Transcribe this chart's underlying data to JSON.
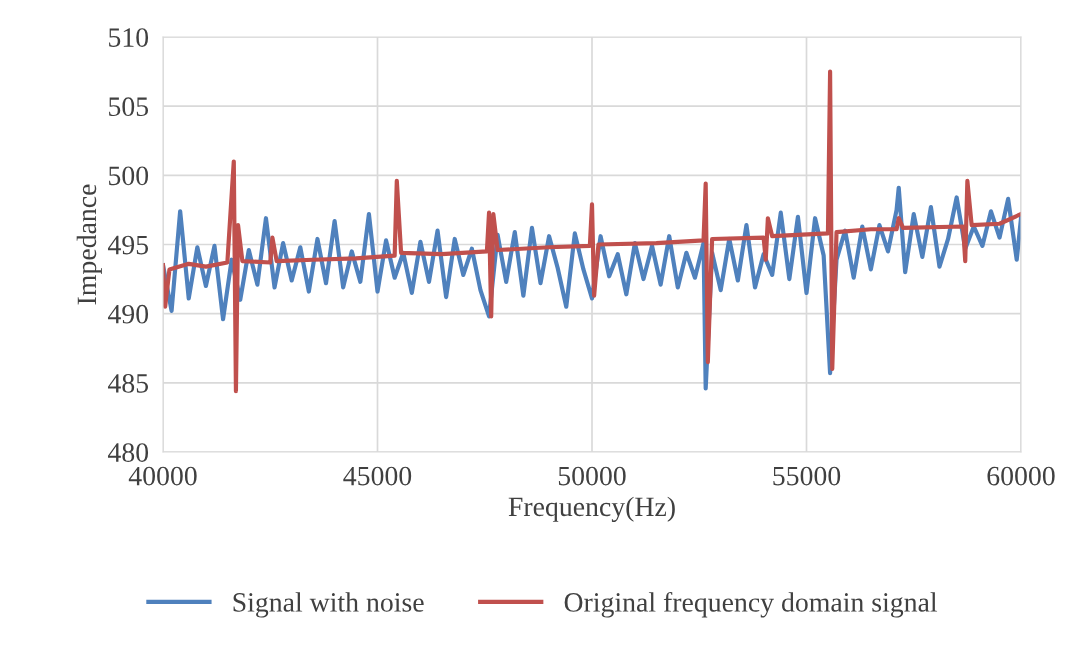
{
  "chart_data": {
    "type": "line",
    "xlabel": "Frequency(Hz)",
    "ylabel": "Impedance",
    "xlim": [
      40000,
      60000
    ],
    "xticks": [
      40000,
      45000,
      50000,
      55000,
      60000
    ],
    "ylim": [
      480,
      510
    ],
    "yticks": [
      480,
      485,
      490,
      495,
      500,
      505,
      510
    ],
    "grid": true,
    "legend": "bottom",
    "marker": "none",
    "line_style": "solid",
    "series": [
      {
        "name": "Signal with noise",
        "color": "#4f81bd",
        "x": [
          40000,
          40200,
          40400,
          40600,
          40800,
          41000,
          41200,
          41400,
          41600,
          41800,
          42000,
          42200,
          42400,
          42600,
          42800,
          43000,
          43200,
          43400,
          43600,
          43800,
          44000,
          44200,
          44400,
          44600,
          44800,
          45000,
          45200,
          45400,
          45600,
          45800,
          46000,
          46200,
          46400,
          46600,
          46800,
          47000,
          47200,
          47400,
          47600,
          47800,
          48000,
          48200,
          48400,
          48600,
          48800,
          49000,
          49200,
          49400,
          49600,
          49800,
          50000,
          50200,
          50400,
          50600,
          50800,
          51000,
          51200,
          51400,
          51600,
          51800,
          52000,
          52200,
          52400,
          52600,
          52650,
          52800,
          53000,
          53200,
          53400,
          53600,
          53800,
          54000,
          54200,
          54400,
          54600,
          54800,
          55000,
          55200,
          55400,
          55550,
          55700,
          55900,
          56100,
          56300,
          56500,
          56700,
          56900,
          57100,
          57150,
          57300,
          57500,
          57700,
          57900,
          58100,
          58300,
          58500,
          58700,
          58900,
          59100,
          59300,
          59500,
          59700,
          59900,
          60000
        ],
        "values": [
          493.5,
          490.2,
          497.4,
          491.1,
          494.8,
          492.0,
          494.9,
          489.6,
          493.9,
          491.0,
          494.6,
          492.1,
          496.9,
          491.9,
          495.1,
          492.4,
          494.8,
          491.6,
          495.4,
          492.2,
          496.7,
          491.9,
          494.5,
          492.3,
          497.2,
          491.6,
          495.3,
          492.6,
          494.4,
          491.5,
          495.2,
          492.3,
          496.0,
          491.2,
          495.4,
          492.8,
          494.7,
          491.7,
          489.8,
          495.7,
          492.3,
          495.9,
          491.3,
          496.2,
          492.2,
          495.6,
          493.3,
          490.5,
          495.8,
          493.2,
          491.1,
          495.6,
          492.7,
          494.3,
          491.4,
          495.1,
          492.5,
          494.9,
          492.1,
          495.6,
          491.9,
          494.4,
          492.6,
          495.1,
          484.6,
          494.4,
          491.7,
          495.4,
          492.4,
          496.4,
          491.9,
          494.3,
          492.8,
          497.3,
          492.5,
          497.0,
          491.5,
          496.9,
          494.2,
          485.7,
          493.9,
          496.0,
          492.6,
          496.3,
          493.2,
          496.4,
          494.5,
          497.5,
          499.1,
          493.0,
          497.2,
          494.1,
          497.7,
          493.4,
          495.4,
          498.4,
          494.7,
          496.3,
          494.9,
          497.4,
          495.5,
          498.3,
          493.9,
          496.9
        ]
      },
      {
        "name": "Original frequency domain signal",
        "color": "#c0504d",
        "x": [
          40000,
          40050,
          40150,
          40600,
          41000,
          41500,
          41650,
          41700,
          41750,
          41850,
          42500,
          42550,
          42650,
          43500,
          44500,
          45400,
          45450,
          45550,
          46500,
          47550,
          47600,
          47650,
          47700,
          47800,
          49000,
          49950,
          50000,
          50050,
          50150,
          51500,
          52600,
          52650,
          52700,
          52800,
          54000,
          54050,
          54100,
          54200,
          55500,
          55550,
          55600,
          55700,
          56500,
          57100,
          57150,
          57250,
          58650,
          58700,
          58750,
          58850,
          59500,
          60000
        ],
        "values": [
          493.5,
          490.5,
          493.2,
          493.6,
          493.4,
          493.7,
          501.0,
          484.4,
          496.4,
          493.8,
          493.7,
          495.5,
          493.8,
          493.9,
          494.0,
          494.2,
          499.6,
          494.4,
          494.3,
          494.5,
          497.3,
          489.8,
          497.2,
          494.6,
          494.8,
          494.9,
          497.9,
          491.3,
          495.0,
          495.1,
          495.3,
          499.4,
          486.5,
          495.4,
          495.5,
          493.9,
          496.9,
          495.6,
          495.8,
          507.5,
          486.0,
          495.9,
          496.1,
          496.1,
          496.9,
          496.2,
          496.3,
          493.8,
          499.6,
          496.4,
          496.5,
          497.2
        ]
      }
    ]
  }
}
